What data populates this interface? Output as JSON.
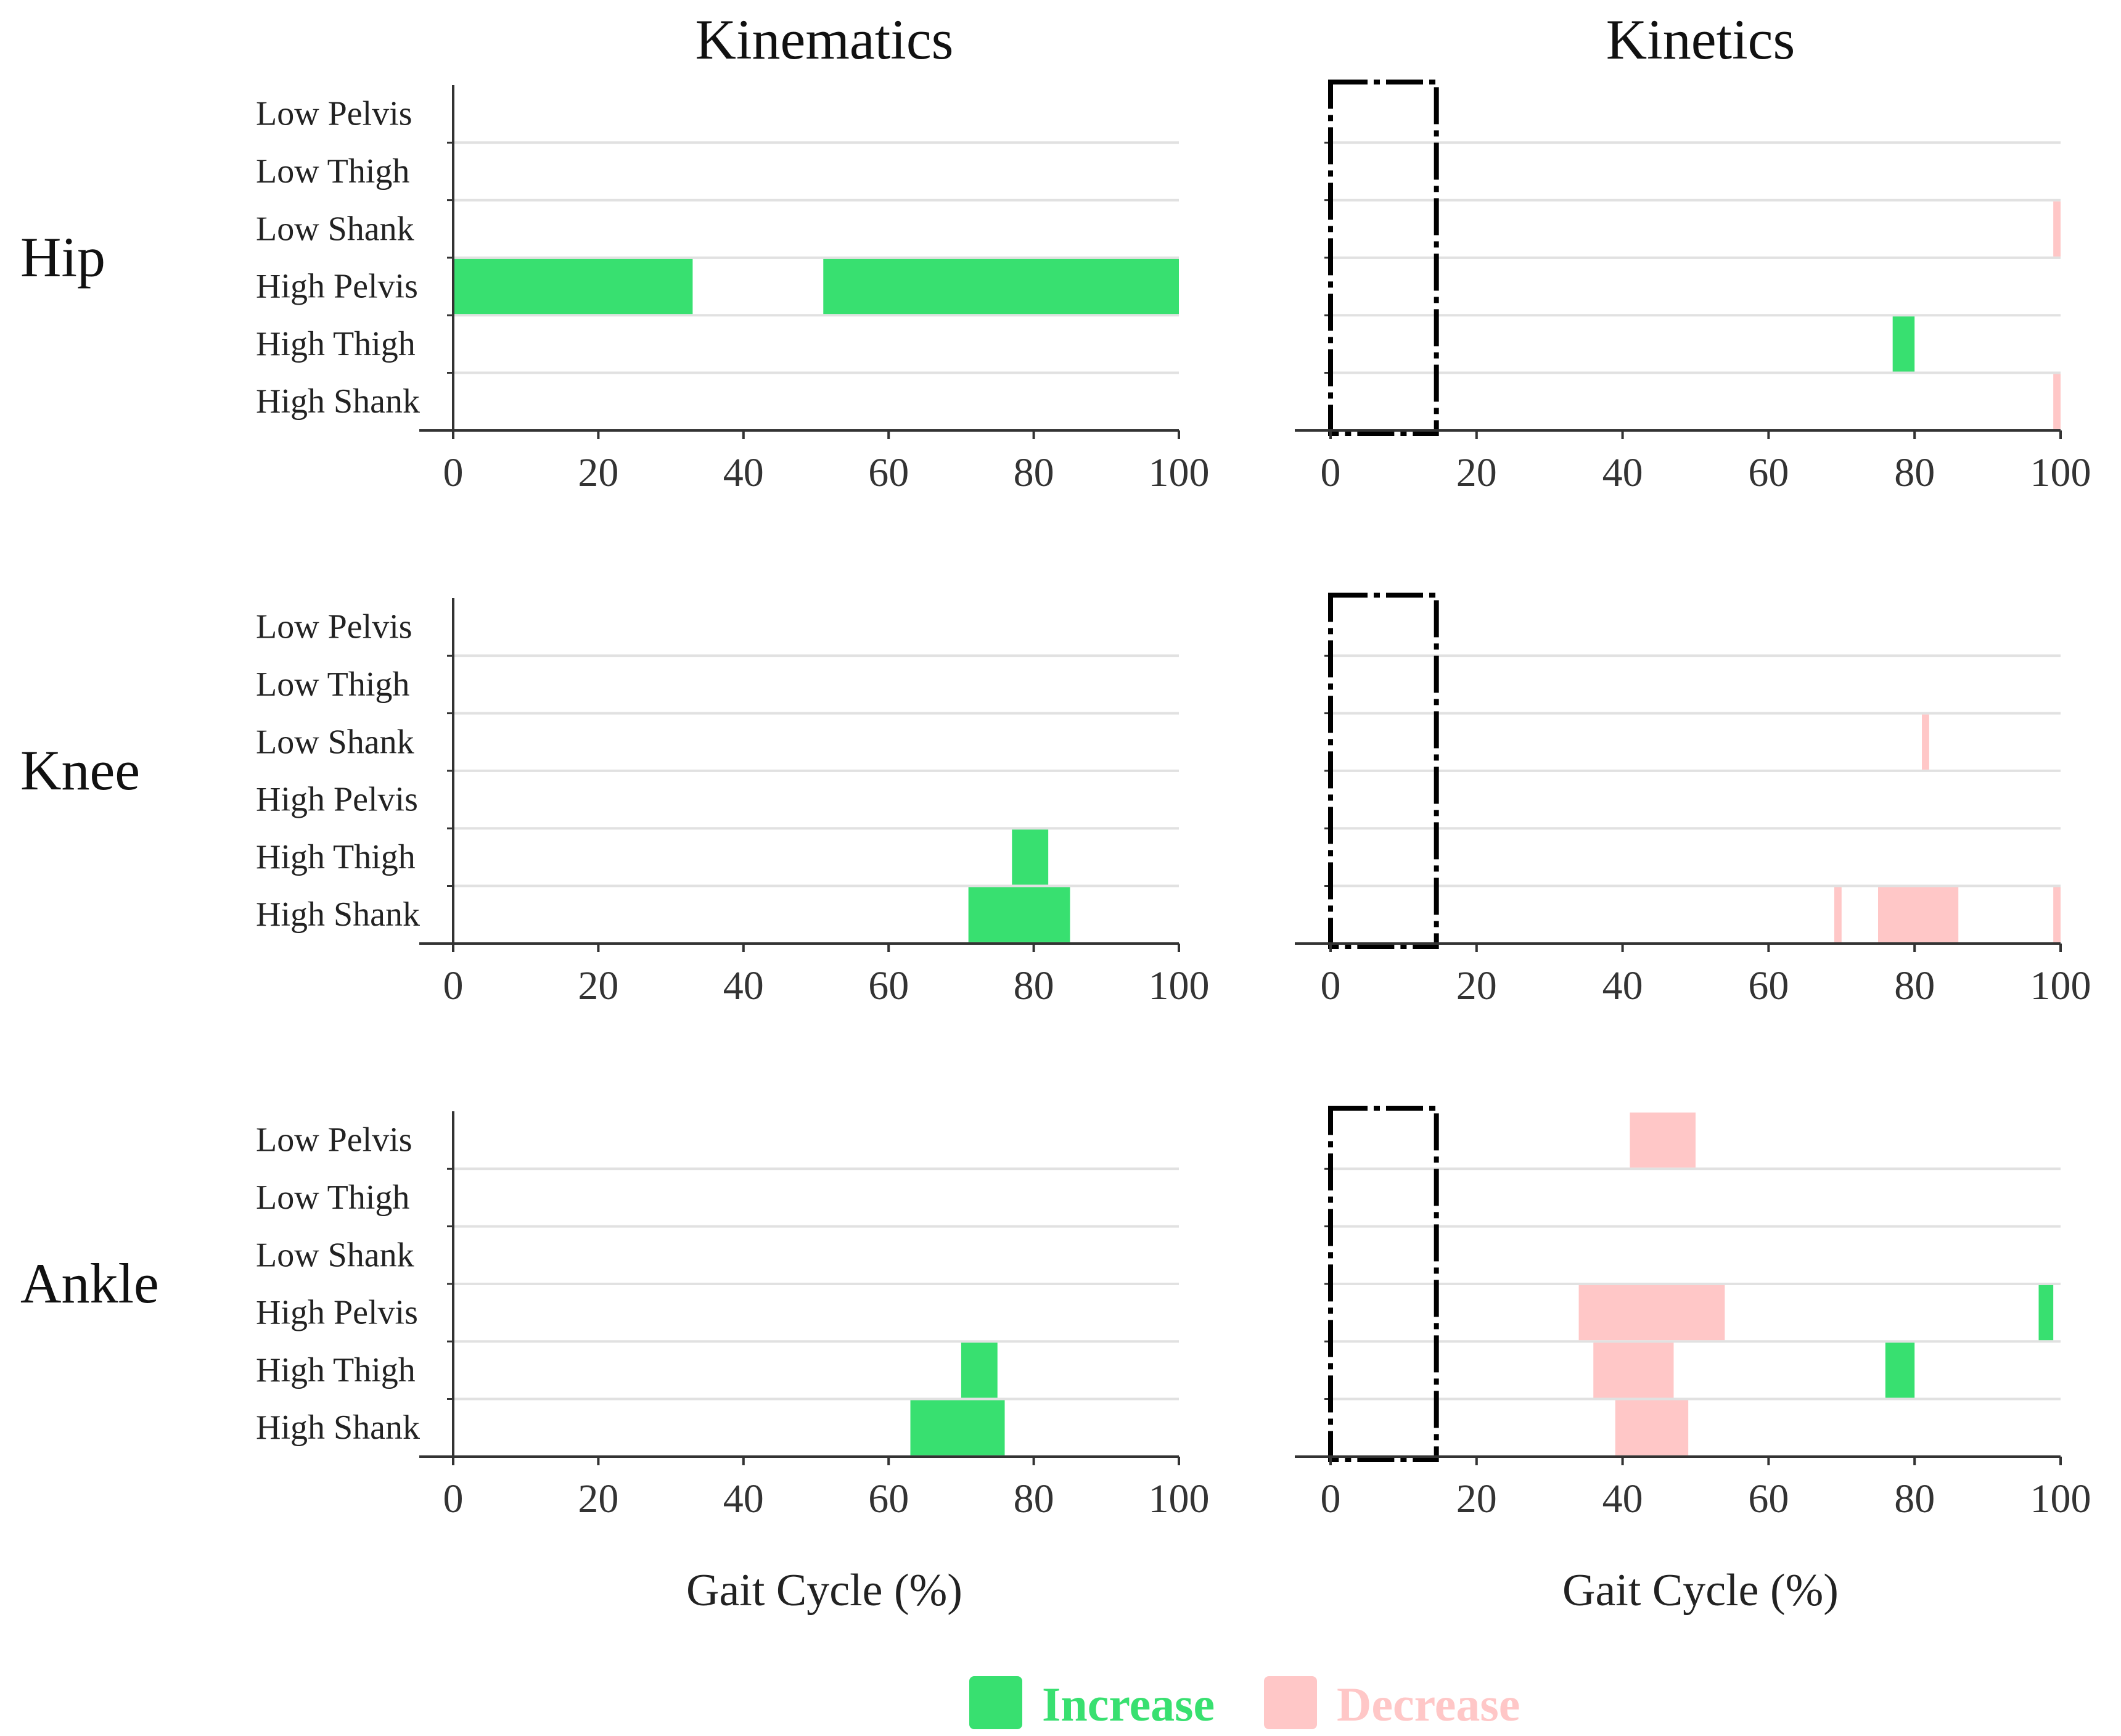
{
  "figure": {
    "column_titles": [
      "Kinematics",
      "Kinetics"
    ],
    "row_titles": [
      "Hip",
      "Knee",
      "Ankle"
    ],
    "xlabel": "Gait Cycle (%)",
    "legend": [
      {
        "label": "Increase",
        "color": "#38e070"
      },
      {
        "label": "Decrease",
        "color": "#ffc7c7"
      }
    ]
  },
  "chart_data": {
    "type": "bar",
    "orientation": "horizontal-interval",
    "categories": [
      "Low Pelvis",
      "Low Thigh",
      "Low Shank",
      "High Pelvis",
      "High Thigh",
      "High Shank"
    ],
    "xlim": [
      0,
      100
    ],
    "xticks": [
      0,
      20,
      40,
      60,
      80,
      100
    ],
    "colors": {
      "increase": "#38e070",
      "decrease": "#ffc7c7",
      "grid": "#e1e1e1",
      "axis": "#333333"
    },
    "panels": [
      {
        "row": "Hip",
        "col": "Kinematics",
        "highlight_box": null,
        "intervals": [
          {
            "category": "High Pelvis",
            "start": 0,
            "end": 33,
            "effect": "increase"
          },
          {
            "category": "High Pelvis",
            "start": 51,
            "end": 100,
            "effect": "increase"
          }
        ]
      },
      {
        "row": "Hip",
        "col": "Kinetics",
        "highlight_box": [
          0,
          14.5
        ],
        "intervals": [
          {
            "category": "Low Shank",
            "start": 99,
            "end": 100,
            "effect": "decrease"
          },
          {
            "category": "High Thigh",
            "start": 77,
            "end": 80,
            "effect": "increase"
          },
          {
            "category": "High Shank",
            "start": 99,
            "end": 100,
            "effect": "decrease"
          }
        ]
      },
      {
        "row": "Knee",
        "col": "Kinematics",
        "highlight_box": null,
        "intervals": [
          {
            "category": "High Thigh",
            "start": 77,
            "end": 82,
            "effect": "increase"
          },
          {
            "category": "High Shank",
            "start": 71,
            "end": 85,
            "effect": "increase"
          }
        ]
      },
      {
        "row": "Knee",
        "col": "Kinetics",
        "highlight_box": [
          0,
          14.5
        ],
        "intervals": [
          {
            "category": "Low Shank",
            "start": 81,
            "end": 82,
            "effect": "decrease"
          },
          {
            "category": "High Shank",
            "start": 69,
            "end": 70,
            "effect": "decrease"
          },
          {
            "category": "High Shank",
            "start": 75,
            "end": 86,
            "effect": "decrease"
          },
          {
            "category": "High Shank",
            "start": 99,
            "end": 100,
            "effect": "decrease"
          }
        ]
      },
      {
        "row": "Ankle",
        "col": "Kinematics",
        "highlight_box": null,
        "intervals": [
          {
            "category": "High Thigh",
            "start": 70,
            "end": 75,
            "effect": "increase"
          },
          {
            "category": "High Shank",
            "start": 63,
            "end": 76,
            "effect": "increase"
          }
        ]
      },
      {
        "row": "Ankle",
        "col": "Kinetics",
        "highlight_box": [
          0,
          14.5
        ],
        "intervals": [
          {
            "category": "Low Pelvis",
            "start": 41,
            "end": 50,
            "effect": "decrease"
          },
          {
            "category": "High Pelvis",
            "start": 34,
            "end": 54,
            "effect": "decrease"
          },
          {
            "category": "High Pelvis",
            "start": 97,
            "end": 99,
            "effect": "increase"
          },
          {
            "category": "High Thigh",
            "start": 36,
            "end": 47,
            "effect": "decrease"
          },
          {
            "category": "High Thigh",
            "start": 76,
            "end": 80,
            "effect": "increase"
          },
          {
            "category": "High Shank",
            "start": 39,
            "end": 49,
            "effect": "decrease"
          }
        ]
      }
    ]
  }
}
